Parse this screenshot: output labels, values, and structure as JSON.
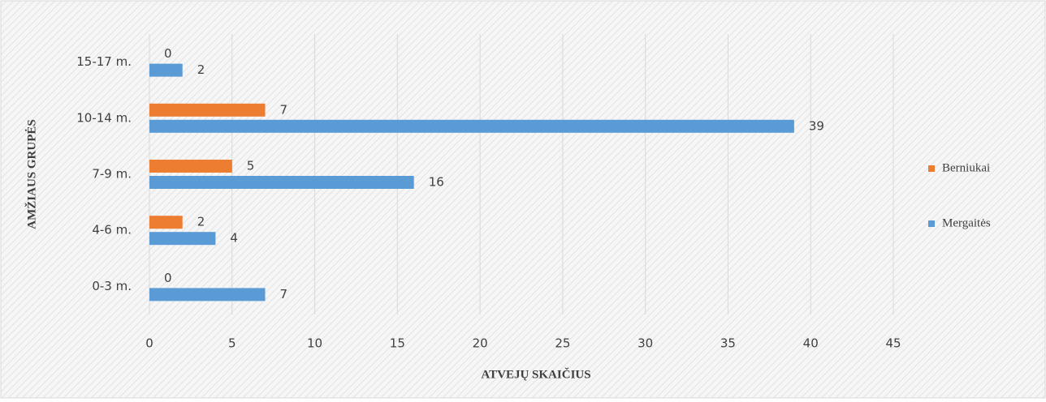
{
  "chart_data": {
    "type": "hbar",
    "x_label": "ATVEJŲ SKAIČIUS",
    "y_label": "AMŽIAUS GRUPĖS",
    "categories": [
      "0-3 m.",
      "4-6 m.",
      "7-9 m.",
      "10-14 m.",
      "15-17 m."
    ],
    "series": [
      {
        "name": "Berniukai",
        "color": "#ed7d31",
        "values": [
          0,
          2,
          5,
          7,
          0
        ]
      },
      {
        "name": "Mergaitės",
        "color": "#5b9bd5",
        "values": [
          7,
          4,
          16,
          39,
          2
        ]
      }
    ],
    "xlim": [
      0,
      45
    ],
    "xticks": [
      0,
      5,
      10,
      15,
      20,
      25,
      30,
      35,
      40,
      45
    ],
    "grid": true,
    "legend": "right"
  }
}
